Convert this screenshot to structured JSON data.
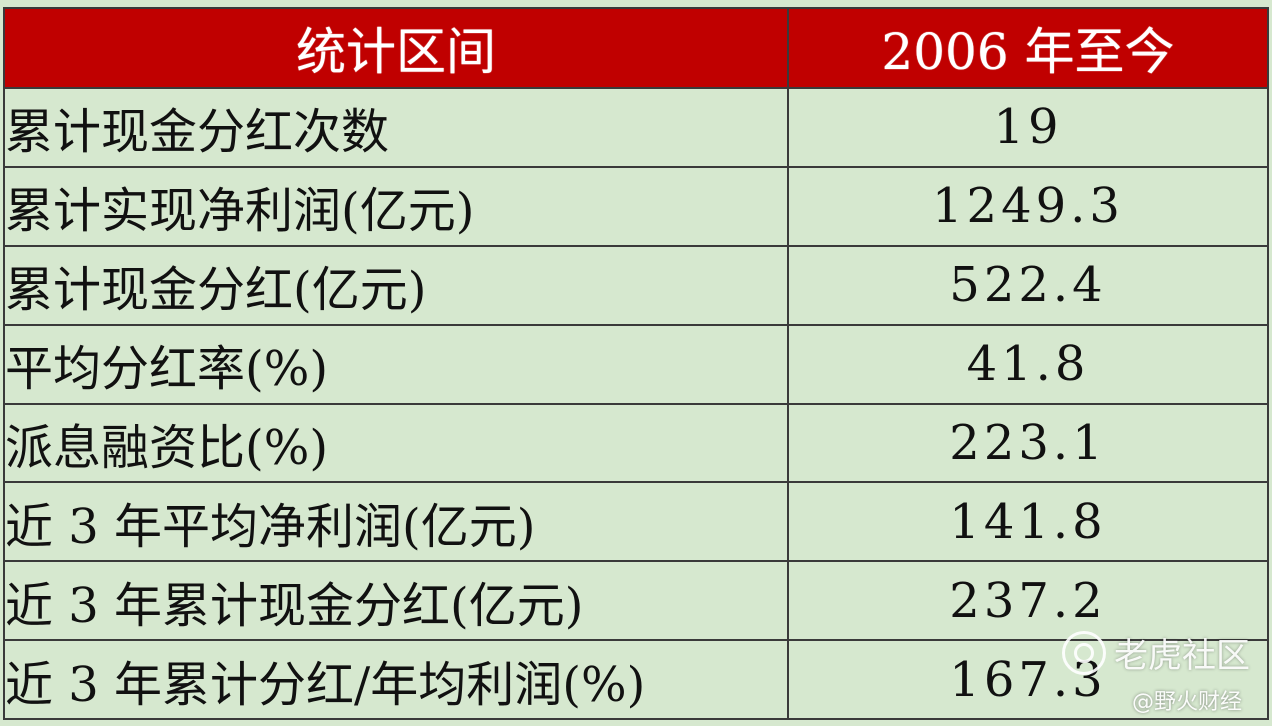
{
  "table": {
    "header": {
      "col1": "统计区间",
      "col2": "2006 年至今"
    },
    "rows": [
      {
        "label": "累计现金分红次数",
        "value": "19"
      },
      {
        "label": "累计实现净利润(亿元)",
        "value": "1249.3"
      },
      {
        "label": "累计现金分红(亿元)",
        "value": "522.4"
      },
      {
        "label": "平均分红率(%)",
        "value": "41.8"
      },
      {
        "label": "派息融资比(%)",
        "value": "223.1"
      },
      {
        "label": "近 3 年平均净利润(亿元)",
        "value": "141.8"
      },
      {
        "label": "近 3 年累计现金分红(亿元)",
        "value": "237.2"
      },
      {
        "label": "近 3 年累计分红/年均利润(%)",
        "value": "167.3"
      }
    ]
  },
  "watermark": {
    "brand": "老虎社区",
    "credit": "@野火财经",
    "icon": "tiger-community-logo-icon"
  },
  "colors": {
    "header_bg": "#c00000",
    "header_text": "#ffffff",
    "body_bg": "#d6e8cf",
    "border": "#3a3a3a"
  }
}
